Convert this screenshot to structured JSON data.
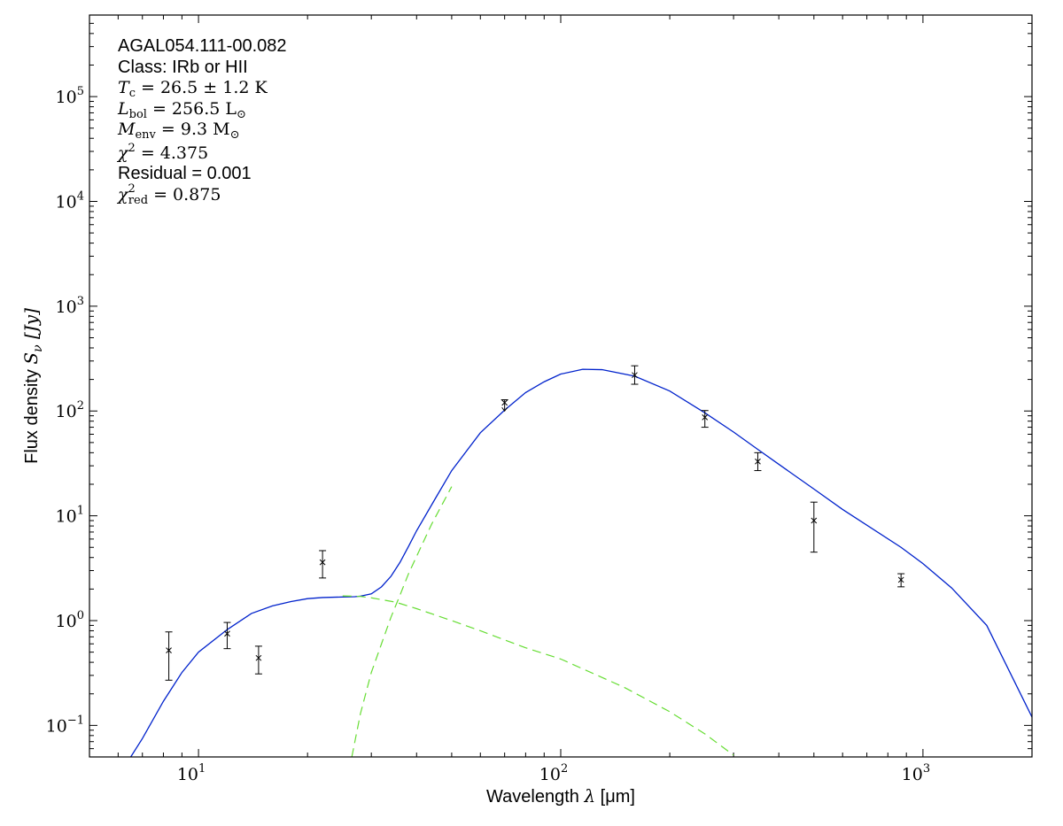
{
  "chart_data": {
    "type": "scatter",
    "x_scale": "log",
    "y_scale": "log",
    "xlim": [
      5,
      2000
    ],
    "ylim": [
      0.05,
      600000
    ],
    "xlabel": {
      "prefix": "Wavelength ",
      "symbol": "λ",
      "suffix": " [μm]"
    },
    "ylabel": {
      "prefix": "Flux density ",
      "symbol": "S",
      "sub": "ν",
      "suffix": " [Jy]"
    },
    "x_ticks": [
      {
        "value": 10,
        "base": "10",
        "exp": "1"
      },
      {
        "value": 100,
        "base": "10",
        "exp": "2"
      },
      {
        "value": 1000,
        "base": "10",
        "exp": "3"
      }
    ],
    "y_ticks": [
      {
        "value": 0.1,
        "base": "10",
        "exp": "−1"
      },
      {
        "value": 1,
        "base": "10",
        "exp": "0"
      },
      {
        "value": 10,
        "base": "10",
        "exp": "1"
      },
      {
        "value": 100,
        "base": "10",
        "exp": "2"
      },
      {
        "value": 1000,
        "base": "10",
        "exp": "3"
      },
      {
        "value": 10000,
        "base": "10",
        "exp": "4"
      },
      {
        "value": 100000,
        "base": "10",
        "exp": "5"
      }
    ],
    "annotations": {
      "source": "AGAL054.111-00.082",
      "class_line": "Class: IRb or HII",
      "tc_line": "T_c = 26.5 ± 1.2 K",
      "lbol_line": "L_bol = 256.5 L_⊙",
      "menv_line": "M_env = 9.3 M_⊙",
      "chi2_line": "χ² = 4.375",
      "residual_line": "Residual = 0.001",
      "chi2red_line": "χ²_red = 0.875"
    },
    "series": [
      {
        "type": "errorbar",
        "color": "#000000",
        "points": [
          {
            "x": 8.28,
            "y": 0.52,
            "ylo": 0.27,
            "yhi": 0.78
          },
          {
            "x": 12,
            "y": 0.75,
            "ylo": 0.54,
            "yhi": 0.96
          },
          {
            "x": 14.65,
            "y": 0.44,
            "ylo": 0.31,
            "yhi": 0.57
          },
          {
            "x": 22,
            "y": 3.6,
            "ylo": 2.55,
            "yhi": 4.65
          },
          {
            "x": 70,
            "y": 120,
            "ylo": 100,
            "yhi": 128,
            "upper_limit": true
          },
          {
            "x": 160,
            "y": 220,
            "ylo": 180,
            "yhi": 270
          },
          {
            "x": 250,
            "y": 87,
            "ylo": 70,
            "yhi": 101
          },
          {
            "x": 350,
            "y": 33,
            "ylo": 27,
            "yhi": 40
          },
          {
            "x": 500,
            "y": 9,
            "ylo": 4.5,
            "yhi": 13.5
          },
          {
            "x": 870,
            "y": 2.45,
            "ylo": 2.1,
            "yhi": 2.8
          }
        ]
      },
      {
        "type": "line",
        "role": "total-fit",
        "color": "#0022cc",
        "x": [
          6.5,
          7,
          8,
          9,
          10,
          12,
          14,
          16,
          18,
          20,
          22,
          25,
          27,
          28,
          30,
          32,
          34,
          36,
          38,
          40,
          45,
          50,
          60,
          70,
          80,
          90,
          100,
          115,
          130,
          160,
          200,
          250,
          300,
          350,
          400,
          500,
          600,
          870,
          1000,
          1200,
          1500,
          2000
        ],
        "y": [
          0.05,
          0.075,
          0.17,
          0.32,
          0.5,
          0.82,
          1.17,
          1.38,
          1.52,
          1.62,
          1.66,
          1.68,
          1.69,
          1.71,
          1.8,
          2.1,
          2.65,
          3.6,
          5.1,
          7.2,
          14.5,
          27,
          62,
          102,
          150,
          190,
          225,
          250,
          248,
          215,
          155,
          96,
          63,
          43,
          31,
          18,
          11.5,
          5.0,
          3.5,
          2.05,
          0.9,
          0.12
        ]
      },
      {
        "type": "line",
        "role": "hot-component",
        "color": "#66dd33",
        "dash": true,
        "x": [
          25,
          28,
          30,
          35,
          40,
          50,
          60,
          80,
          100,
          150,
          200,
          250,
          300
        ],
        "y": [
          1.72,
          1.7,
          1.65,
          1.5,
          1.3,
          1.0,
          0.8,
          0.55,
          0.43,
          0.23,
          0.135,
          0.083,
          0.052
        ]
      },
      {
        "type": "line",
        "role": "cold-component",
        "color": "#66dd33",
        "dash": true,
        "x": [
          26.5,
          28,
          30,
          32,
          34,
          36,
          38,
          40,
          44,
          50
        ],
        "y": [
          0.05,
          0.13,
          0.32,
          0.6,
          1.08,
          1.75,
          2.8,
          4.1,
          8.3,
          19
        ]
      }
    ]
  }
}
